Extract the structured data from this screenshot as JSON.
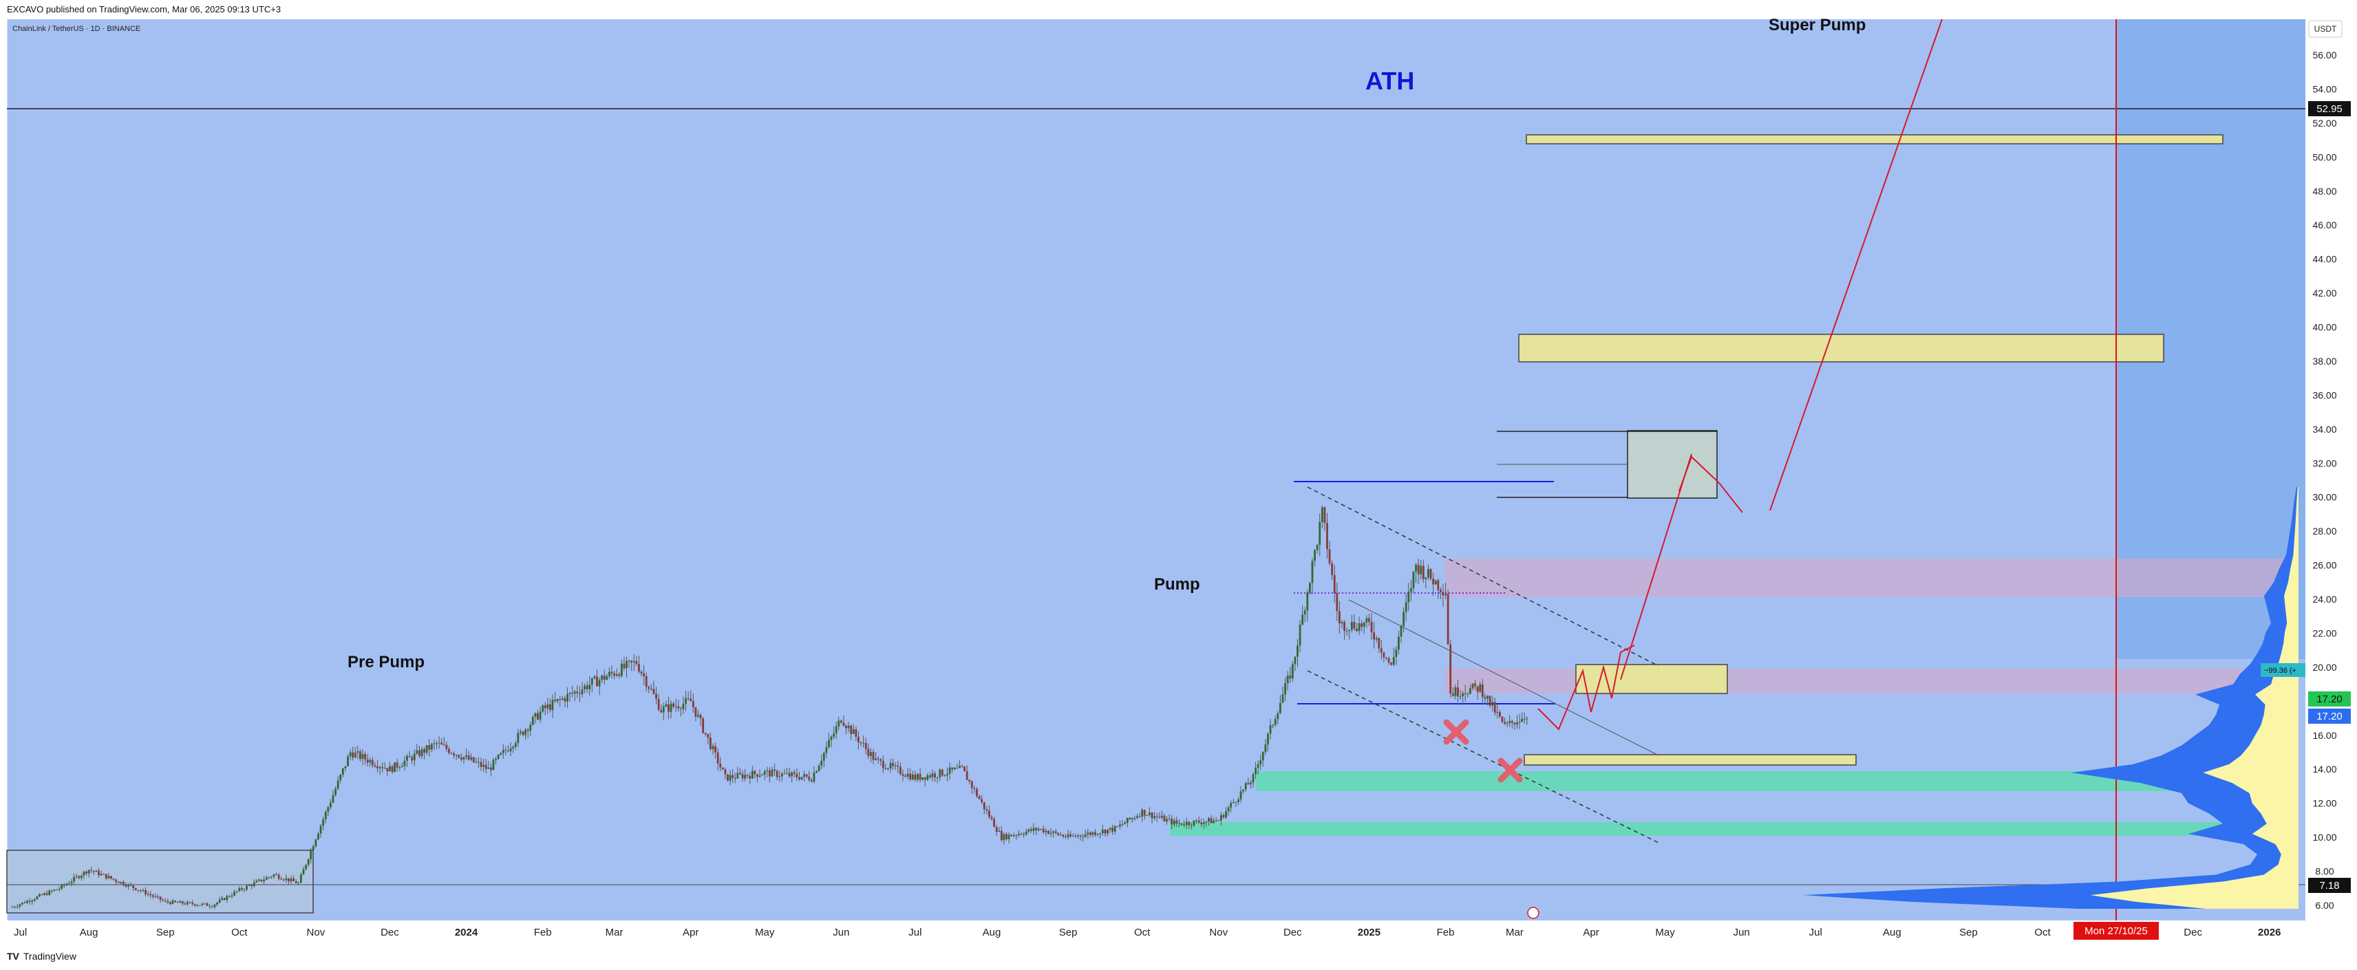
{
  "header": {
    "published": "EXCAVO published on TradingView.com, Mar 06, 2025 09:13 UTC+3"
  },
  "chart_title": "ChainLink / TetherUS · 1D · BINANCE",
  "currency_button": "USDT",
  "footer": {
    "brand_glyph": "TV",
    "brand": "TradingView"
  },
  "annotations": {
    "ath": "ATH",
    "super_pump": "Super Pump",
    "pump": "Pump",
    "pre_pump": "Pre Pump"
  },
  "colors": {
    "background": "#a4c0f2",
    "forecast_bg": "#86b0ee",
    "ath_text": "#1414d8",
    "candle_up": "#2e6b2e",
    "candle_down": "#8c3838",
    "zone_yellow": "#e6e39c",
    "zone_green": "#5fdcb0",
    "zone_pink": "#d7a8c8",
    "red_line": "#e01010",
    "volume_profile_blue": "#2f6ff0",
    "volume_profile_yellow": "#fbf5a8"
  },
  "price_markers": {
    "ath_level": "52.95",
    "current_a": "17.20",
    "current_b": "17.20",
    "low_level": "7.18",
    "poc_label": "~99.36 (+"
  },
  "date_marker": "Mon 27/10/25",
  "chart_data": {
    "type": "candlestick",
    "title": "ChainLink / TetherUS · 1D · BINANCE",
    "ylim": [
      5,
      58
    ],
    "y_ticks": [
      "6.00",
      "8.00",
      "10.00",
      "12.00",
      "14.00",
      "16.00",
      "18.00",
      "20.00",
      "22.00",
      "24.00",
      "26.00",
      "28.00",
      "30.00",
      "32.00",
      "34.00",
      "36.00",
      "38.00",
      "40.00",
      "42.00",
      "44.00",
      "46.00",
      "48.00",
      "50.00",
      "52.00",
      "54.00",
      "56.00"
    ],
    "x_ticks": [
      "Jul",
      "Aug",
      "Sep",
      "Oct",
      "Nov",
      "Dec",
      "2024",
      "Feb",
      "Mar",
      "Apr",
      "May",
      "Jun",
      "Jul",
      "Aug",
      "Sep",
      "Oct",
      "Nov",
      "Dec",
      "2025",
      "Feb",
      "Mar",
      "Apr",
      "May",
      "Jun",
      "Jul",
      "Aug",
      "Sep",
      "Oct",
      "Nov",
      "Dec",
      "2026"
    ],
    "x_range": [
      "2023-07-01",
      "2026-01-10"
    ],
    "price_path": [
      [
        "2023-07-01",
        5.9
      ],
      [
        "2023-07-20",
        7.0
      ],
      [
        "2023-08-01",
        8.1
      ],
      [
        "2023-08-20",
        7.0
      ],
      [
        "2023-09-01",
        6.2
      ],
      [
        "2023-09-20",
        6.0
      ],
      [
        "2023-10-01",
        6.9
      ],
      [
        "2023-10-15",
        7.8
      ],
      [
        "2023-10-25",
        7.3
      ],
      [
        "2023-11-01",
        10.0
      ],
      [
        "2023-11-15",
        15.0
      ],
      [
        "2023-12-01",
        14.0
      ],
      [
        "2023-12-20",
        15.5
      ],
      [
        "2024-01-10",
        14.0
      ],
      [
        "2024-02-01",
        17.5
      ],
      [
        "2024-02-20",
        19.0
      ],
      [
        "2024-03-10",
        20.3
      ],
      [
        "2024-03-20",
        17.5
      ],
      [
        "2024-04-01",
        18.0
      ],
      [
        "2024-04-15",
        13.5
      ],
      [
        "2024-05-01",
        13.8
      ],
      [
        "2024-05-20",
        13.5
      ],
      [
        "2024-06-01",
        17.0
      ],
      [
        "2024-06-15",
        14.5
      ],
      [
        "2024-07-01",
        13.5
      ],
      [
        "2024-07-20",
        14.0
      ],
      [
        "2024-08-05",
        10.0
      ],
      [
        "2024-08-20",
        10.5
      ],
      [
        "2024-09-01",
        10.0
      ],
      [
        "2024-09-20",
        10.5
      ],
      [
        "2024-10-01",
        11.5
      ],
      [
        "2024-10-15",
        10.8
      ],
      [
        "2024-11-01",
        11.0
      ],
      [
        "2024-11-15",
        13.5
      ],
      [
        "2024-12-01",
        20.0
      ],
      [
        "2024-12-13",
        29.0
      ],
      [
        "2024-12-20",
        22.5
      ],
      [
        "2025-01-01",
        22.5
      ],
      [
        "2025-01-10",
        20.0
      ],
      [
        "2025-01-20",
        26.0
      ],
      [
        "2025-02-01",
        24.5
      ],
      [
        "2025-02-03",
        18.5
      ],
      [
        "2025-02-15",
        18.8
      ],
      [
        "2025-02-25",
        16.5
      ],
      [
        "2025-03-06",
        17.2
      ]
    ]
  }
}
